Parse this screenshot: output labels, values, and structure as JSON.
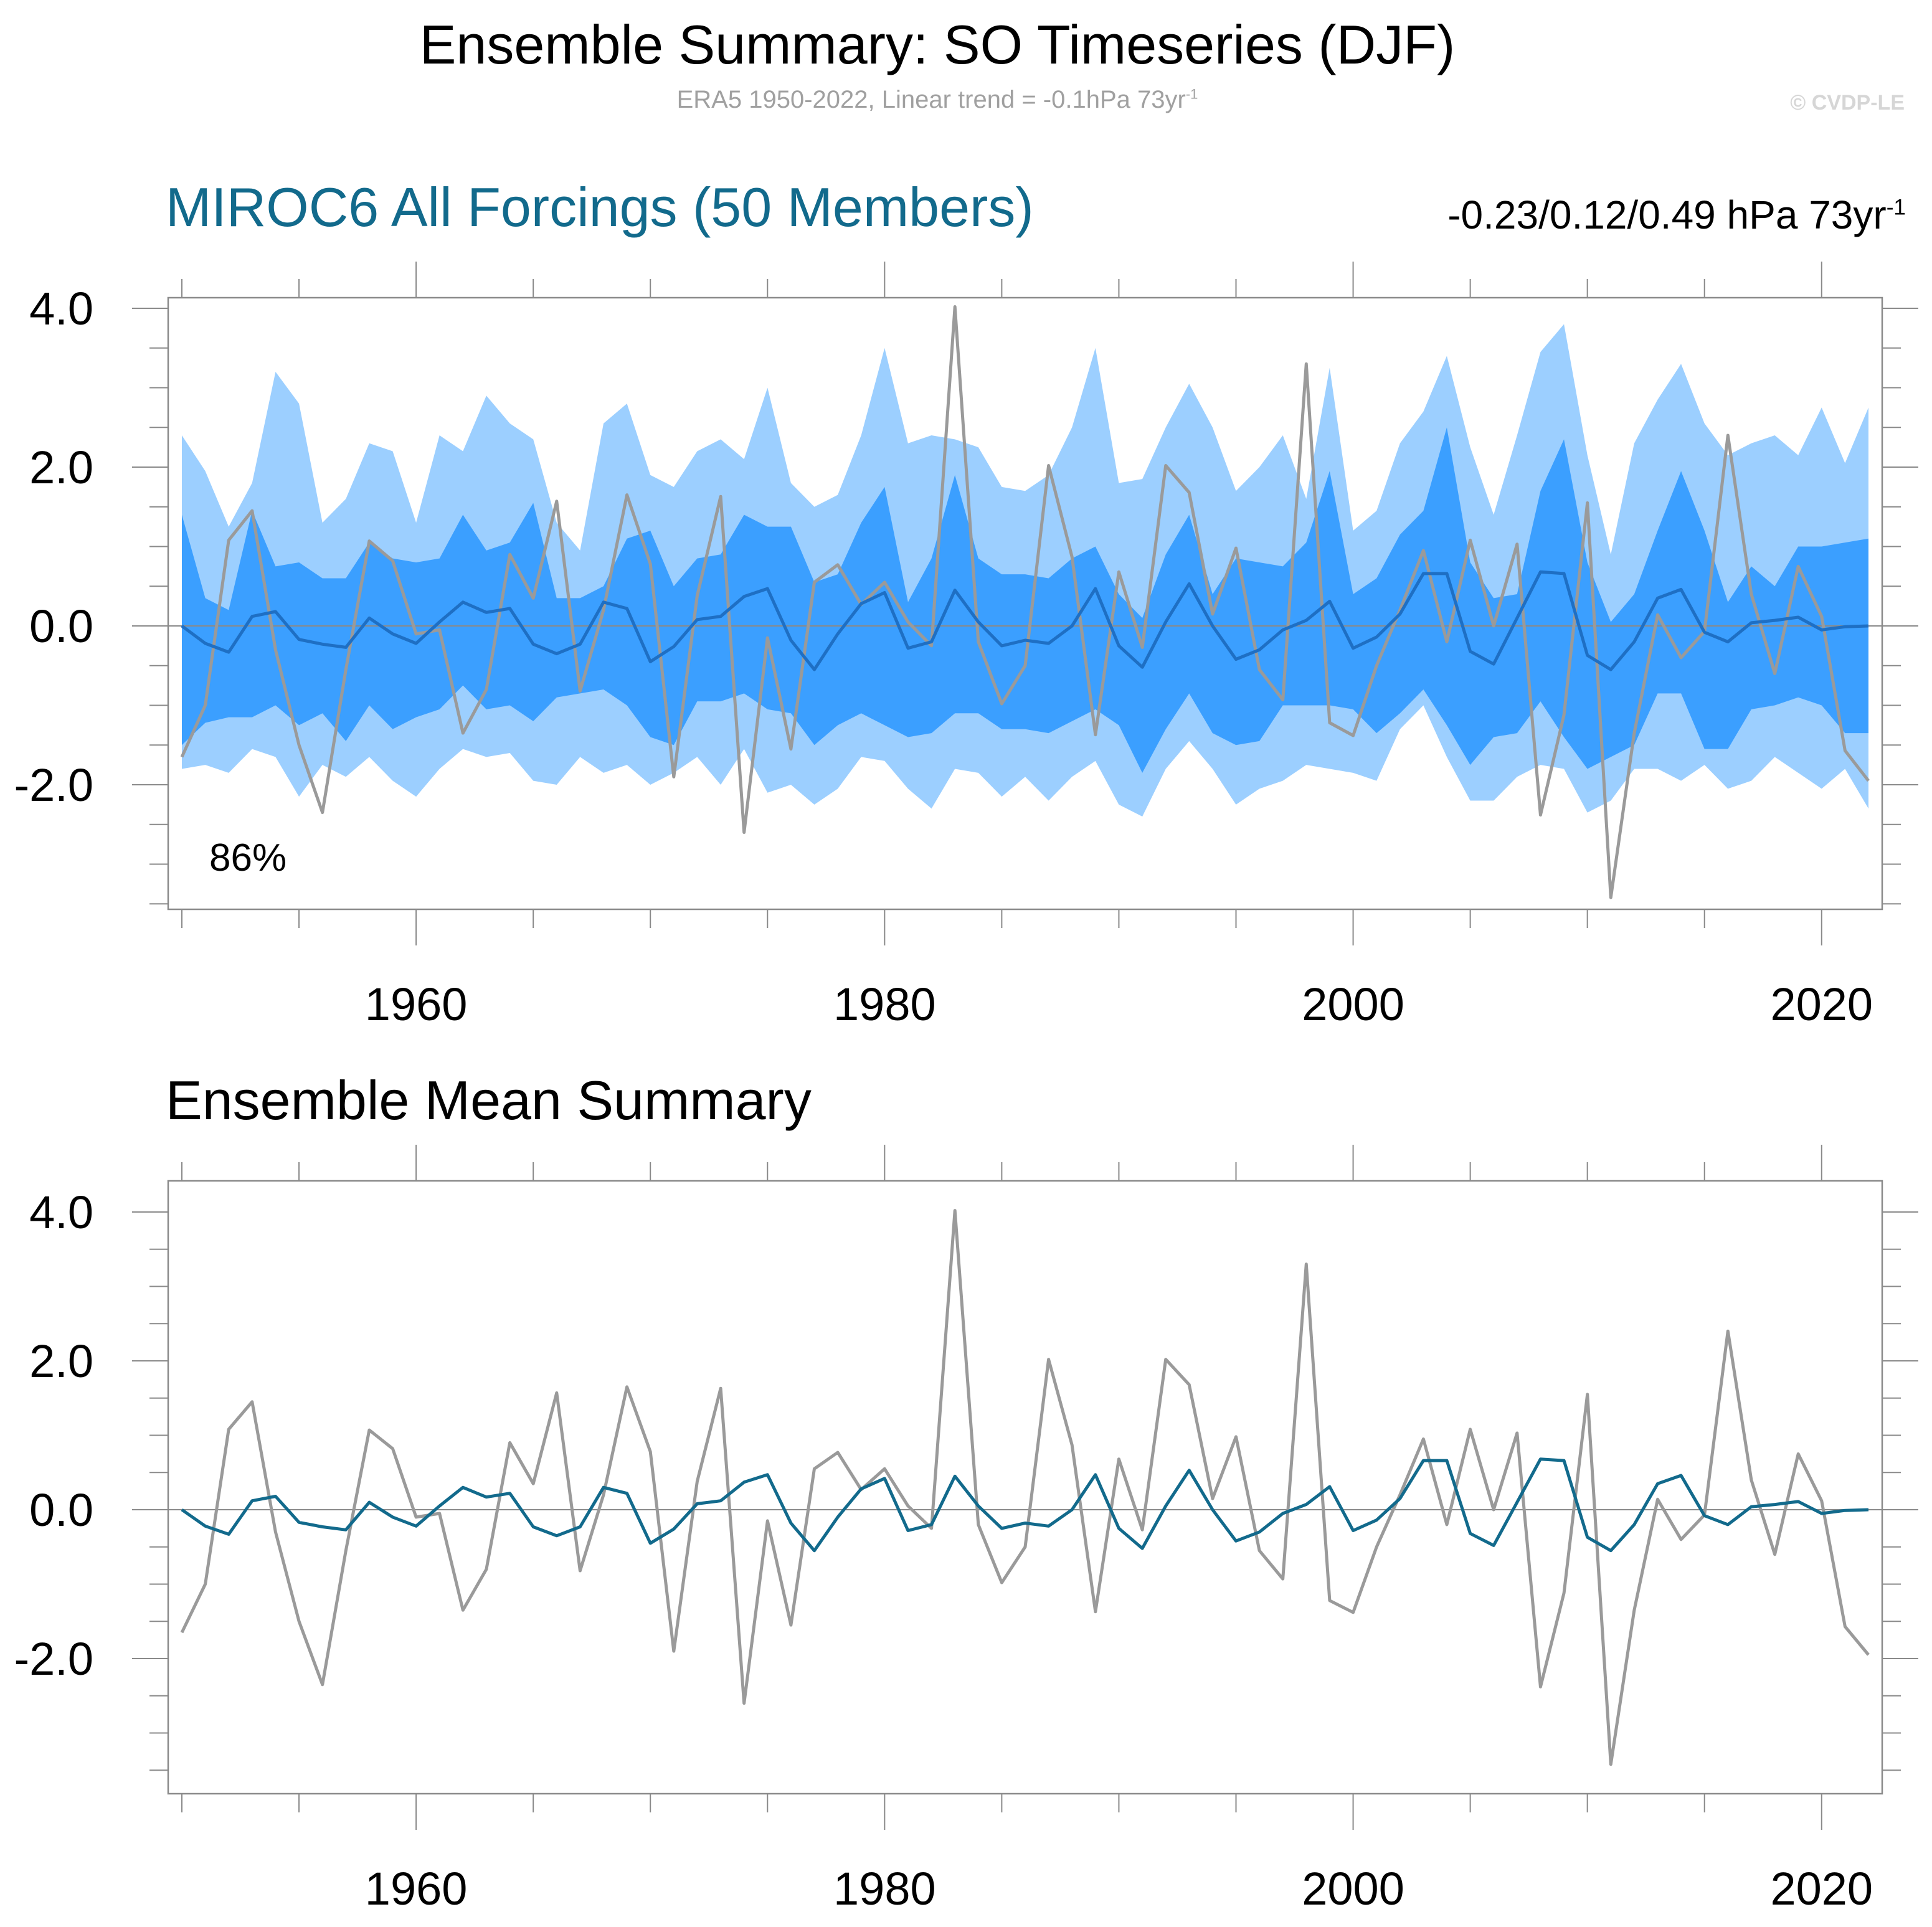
{
  "header": {
    "title": "Ensemble Summary: SO Timeseries (DJF)",
    "subtitle": "ERA5 1950-2022, Linear trend = -0.1hPa 73yr",
    "subtitle_exp": "-1",
    "copyright": "© CVDP-LE"
  },
  "panel1": {
    "title": "MIROC6 All Forcings (50 Members)",
    "trend": "-0.23/0.12/0.49 hPa 73yr",
    "trend_exp": "-1",
    "annotation": "86%"
  },
  "panel2": {
    "title": "Ensemble Mean Summary"
  },
  "colors": {
    "outer_band": "#9ccfff",
    "inner_band": "#3b9fff",
    "ensemble_mean_panel1": "#1e6fc4",
    "ensemble_mean_panel2": "#126a8c",
    "observations": "#9a9a9a",
    "title_accent": "#126a8c"
  },
  "chart_data": [
    {
      "type": "area",
      "title": "MIROC6 All Forcings (50 Members)",
      "xlim": [
        1950,
        2022
      ],
      "ylim": [
        -3.5,
        4.2
      ],
      "x_ticks": [
        1960,
        1980,
        2000,
        2020
      ],
      "y_ticks": [
        4.0,
        2.0,
        0.0,
        -2.0
      ],
      "x_tick_labels": [
        "1960",
        "1980",
        "2000",
        "2020"
      ],
      "y_tick_labels": [
        "4.0",
        "2.0",
        "0.0",
        "-2.0"
      ],
      "grid": false,
      "x": [
        1950,
        1951,
        1952,
        1953,
        1954,
        1955,
        1956,
        1957,
        1958,
        1959,
        1960,
        1961,
        1962,
        1963,
        1964,
        1965,
        1966,
        1967,
        1968,
        1969,
        1970,
        1971,
        1972,
        1973,
        1974,
        1975,
        1976,
        1977,
        1978,
        1979,
        1980,
        1981,
        1982,
        1983,
        1984,
        1985,
        1986,
        1987,
        1988,
        1989,
        1990,
        1991,
        1992,
        1993,
        1994,
        1995,
        1996,
        1997,
        1998,
        1999,
        2000,
        2001,
        2002,
        2003,
        2004,
        2005,
        2006,
        2007,
        2008,
        2009,
        2010,
        2011,
        2012,
        2013,
        2014,
        2015,
        2016,
        2017,
        2018,
        2019,
        2020,
        2021,
        2022
      ],
      "series": [
        {
          "name": "",
          "role": "outer_upper",
          "values": [
            2.4,
            1.95,
            1.25,
            1.8,
            3.2,
            2.8,
            1.3,
            1.6,
            2.3,
            2.2,
            1.3,
            2.4,
            2.2,
            2.9,
            2.55,
            2.35,
            1.3,
            0.95,
            2.55,
            2.8,
            1.9,
            1.75,
            2.2,
            2.35,
            2.1,
            3.0,
            1.8,
            1.5,
            1.65,
            2.4,
            3.5,
            2.3,
            2.4,
            2.35,
            2.25,
            1.75,
            1.7,
            1.9,
            2.5,
            3.5,
            1.8,
            1.85,
            2.5,
            3.05,
            2.5,
            1.7,
            2.0,
            2.4,
            1.6,
            3.25,
            1.2,
            1.45,
            2.3,
            2.7,
            3.4,
            2.25,
            1.4,
            2.4,
            3.45,
            3.8,
            2.15,
            0.9,
            2.3,
            2.85,
            3.3,
            2.55,
            2.15,
            2.3,
            2.4,
            2.15,
            2.75,
            2.05,
            2.75
          ]
        },
        {
          "name": "",
          "role": "inner_upper",
          "values": [
            1.4,
            0.35,
            0.2,
            1.45,
            0.75,
            0.8,
            0.6,
            0.6,
            1.05,
            0.85,
            0.8,
            0.85,
            1.4,
            0.95,
            1.05,
            1.55,
            0.35,
            0.35,
            0.5,
            1.1,
            1.2,
            0.5,
            0.85,
            0.9,
            1.4,
            1.25,
            1.25,
            0.55,
            0.65,
            1.3,
            1.75,
            0.3,
            0.85,
            1.9,
            0.85,
            0.65,
            0.65,
            0.6,
            0.85,
            1.0,
            0.4,
            0.1,
            0.9,
            1.4,
            0.4,
            0.85,
            0.8,
            0.75,
            1.05,
            1.95,
            0.4,
            0.6,
            1.15,
            1.45,
            2.5,
            0.8,
            0.35,
            0.4,
            1.7,
            2.35,
            0.8,
            0.05,
            0.4,
            1.2,
            1.95,
            1.2,
            0.3,
            0.75,
            0.5,
            1.0,
            1.0,
            1.05,
            1.1
          ]
        },
        {
          "name": "",
          "role": "ensemble_mean",
          "values": [
            0.0,
            -0.22,
            -0.33,
            0.12,
            0.18,
            -0.17,
            -0.23,
            -0.27,
            0.1,
            -0.1,
            -0.22,
            0.05,
            0.3,
            0.17,
            0.22,
            -0.23,
            -0.35,
            -0.23,
            0.3,
            0.22,
            -0.45,
            -0.26,
            0.08,
            0.12,
            0.37,
            0.47,
            -0.18,
            -0.55,
            -0.1,
            0.28,
            0.42,
            -0.28,
            -0.2,
            0.45,
            0.05,
            -0.25,
            -0.18,
            -0.22,
            0.0,
            0.47,
            -0.25,
            -0.52,
            0.05,
            0.53,
            0.0,
            -0.42,
            -0.3,
            -0.05,
            0.07,
            0.31,
            -0.28,
            -0.14,
            0.15,
            0.66,
            0.66,
            -0.32,
            -0.48,
            0.1,
            0.68,
            0.66,
            -0.37,
            -0.55,
            -0.2,
            0.35,
            0.46,
            -0.08,
            -0.2,
            0.04,
            0.07,
            0.11,
            -0.05,
            -0.01,
            0.0
          ]
        },
        {
          "name": "",
          "role": "inner_lower",
          "values": [
            -1.5,
            -1.22,
            -1.15,
            -1.15,
            -1.0,
            -1.25,
            -1.1,
            -1.45,
            -1.0,
            -1.3,
            -1.15,
            -1.05,
            -0.75,
            -1.05,
            -1.0,
            -1.2,
            -0.9,
            -0.85,
            -0.8,
            -1.0,
            -1.4,
            -1.5,
            -0.95,
            -0.95,
            -0.85,
            -1.05,
            -1.1,
            -1.5,
            -1.25,
            -1.1,
            -1.25,
            -1.4,
            -1.35,
            -1.1,
            -1.1,
            -1.3,
            -1.3,
            -1.35,
            -1.2,
            -1.05,
            -1.25,
            -1.85,
            -1.3,
            -0.85,
            -1.35,
            -1.5,
            -1.45,
            -1.0,
            -1.0,
            -1.0,
            -1.05,
            -1.35,
            -1.1,
            -0.8,
            -1.25,
            -1.75,
            -1.4,
            -1.35,
            -0.95,
            -1.4,
            -1.8,
            -1.65,
            -1.5,
            -0.85,
            -0.85,
            -1.55,
            -1.55,
            -1.05,
            -1.0,
            -0.9,
            -1.0,
            -1.35,
            -1.35
          ]
        },
        {
          "name": "",
          "role": "outer_lower",
          "values": [
            -1.8,
            -1.75,
            -1.85,
            -1.55,
            -1.65,
            -2.15,
            -1.75,
            -1.9,
            -1.65,
            -1.95,
            -2.15,
            -1.8,
            -1.55,
            -1.65,
            -1.6,
            -1.95,
            -2.0,
            -1.65,
            -1.85,
            -1.75,
            -2.0,
            -1.85,
            -1.65,
            -2.0,
            -1.55,
            -2.1,
            -2.0,
            -2.25,
            -2.05,
            -1.65,
            -1.7,
            -2.05,
            -2.3,
            -1.8,
            -1.85,
            -2.15,
            -1.9,
            -2.2,
            -1.9,
            -1.7,
            -2.25,
            -2.4,
            -1.8,
            -1.45,
            -1.8,
            -2.25,
            -2.05,
            -1.95,
            -1.75,
            -1.8,
            -1.85,
            -1.95,
            -1.3,
            -1.0,
            -1.65,
            -2.2,
            -2.2,
            -1.9,
            -1.75,
            -1.8,
            -2.35,
            -2.2,
            -1.8,
            -1.8,
            -1.95,
            -1.75,
            -2.05,
            -1.95,
            -1.65,
            -1.85,
            -2.05,
            -1.8,
            -2.3
          ]
        },
        {
          "name": "",
          "role": "observations",
          "values": [
            -1.65,
            -1.0,
            1.08,
            1.45,
            -0.3,
            -1.5,
            -2.35,
            -0.55,
            1.07,
            0.82,
            -0.1,
            -0.05,
            -1.35,
            -0.8,
            0.9,
            0.35,
            1.57,
            -0.82,
            0.2,
            1.65,
            0.78,
            -1.9,
            0.38,
            1.63,
            -2.6,
            -0.15,
            -1.55,
            0.55,
            0.77,
            0.27,
            0.55,
            0.05,
            -0.25,
            4.02,
            -0.2,
            -0.98,
            -0.5,
            2.02,
            0.87,
            -1.37,
            0.68,
            -0.27,
            2.02,
            1.68,
            0.15,
            0.98,
            -0.55,
            -0.93,
            3.3,
            -1.22,
            -1.38,
            -0.5,
            0.2,
            0.95,
            -0.2,
            1.08,
            0.0,
            1.03,
            -2.38,
            -1.12,
            1.55,
            -3.42,
            -1.35,
            0.14,
            -0.4,
            -0.07,
            2.4,
            0.4,
            -0.6,
            0.75,
            0.12,
            -1.57,
            -1.95
          ]
        }
      ]
    },
    {
      "type": "line",
      "title": "Ensemble Mean Summary",
      "xlim": [
        1950,
        2022
      ],
      "ylim": [
        -3.5,
        4.2
      ],
      "x_ticks": [
        1960,
        1980,
        2000,
        2020
      ],
      "y_ticks": [
        4.0,
        2.0,
        0.0,
        -2.0
      ],
      "x_tick_labels": [
        "1960",
        "1980",
        "2000",
        "2020"
      ],
      "y_tick_labels": [
        "4.0",
        "2.0",
        "0.0",
        "-2.0"
      ],
      "grid": false,
      "x": [
        1950,
        1951,
        1952,
        1953,
        1954,
        1955,
        1956,
        1957,
        1958,
        1959,
        1960,
        1961,
        1962,
        1963,
        1964,
        1965,
        1966,
        1967,
        1968,
        1969,
        1970,
        1971,
        1972,
        1973,
        1974,
        1975,
        1976,
        1977,
        1978,
        1979,
        1980,
        1981,
        1982,
        1983,
        1984,
        1985,
        1986,
        1987,
        1988,
        1989,
        1990,
        1991,
        1992,
        1993,
        1994,
        1995,
        1996,
        1997,
        1998,
        1999,
        2000,
        2001,
        2002,
        2003,
        2004,
        2005,
        2006,
        2007,
        2008,
        2009,
        2010,
        2011,
        2012,
        2013,
        2014,
        2015,
        2016,
        2017,
        2018,
        2019,
        2020,
        2021,
        2022
      ],
      "series": [
        {
          "name": "",
          "role": "ensemble_mean",
          "values": [
            0.0,
            -0.22,
            -0.33,
            0.12,
            0.18,
            -0.17,
            -0.23,
            -0.27,
            0.1,
            -0.1,
            -0.22,
            0.05,
            0.3,
            0.17,
            0.22,
            -0.23,
            -0.35,
            -0.23,
            0.3,
            0.22,
            -0.45,
            -0.26,
            0.08,
            0.12,
            0.37,
            0.47,
            -0.18,
            -0.55,
            -0.1,
            0.28,
            0.42,
            -0.28,
            -0.2,
            0.45,
            0.05,
            -0.25,
            -0.18,
            -0.22,
            0.0,
            0.47,
            -0.25,
            -0.52,
            0.05,
            0.53,
            0.0,
            -0.42,
            -0.3,
            -0.05,
            0.07,
            0.31,
            -0.28,
            -0.14,
            0.15,
            0.66,
            0.66,
            -0.32,
            -0.48,
            0.1,
            0.68,
            0.66,
            -0.37,
            -0.55,
            -0.2,
            0.35,
            0.46,
            -0.08,
            -0.2,
            0.04,
            0.07,
            0.11,
            -0.05,
            -0.01,
            0.0
          ]
        },
        {
          "name": "",
          "role": "observations",
          "values": [
            -1.65,
            -1.0,
            1.08,
            1.45,
            -0.3,
            -1.5,
            -2.35,
            -0.55,
            1.07,
            0.82,
            -0.1,
            -0.05,
            -1.35,
            -0.8,
            0.9,
            0.35,
            1.57,
            -0.82,
            0.2,
            1.65,
            0.78,
            -1.9,
            0.38,
            1.63,
            -2.6,
            -0.15,
            -1.55,
            0.55,
            0.77,
            0.27,
            0.55,
            0.05,
            -0.25,
            4.02,
            -0.2,
            -0.98,
            -0.5,
            2.02,
            0.87,
            -1.37,
            0.68,
            -0.27,
            2.02,
            1.68,
            0.15,
            0.98,
            -0.55,
            -0.93,
            3.3,
            -1.22,
            -1.38,
            -0.5,
            0.2,
            0.95,
            -0.2,
            1.08,
            0.0,
            1.03,
            -2.38,
            -1.12,
            1.55,
            -3.42,
            -1.35,
            0.14,
            -0.4,
            -0.07,
            2.4,
            0.4,
            -0.6,
            0.75,
            0.12,
            -1.57,
            -1.95
          ]
        }
      ]
    }
  ]
}
